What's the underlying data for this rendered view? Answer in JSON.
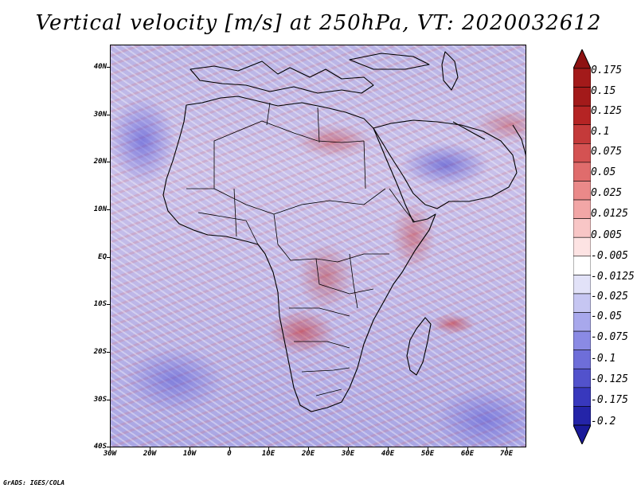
{
  "title": "Vertical velocity [m/s] at 250hPa, VT: 2020032612",
  "credit": "GrADS: IGES/COLA",
  "map": {
    "projection": "latlon",
    "lon_range": [
      -30,
      75
    ],
    "lat_range": [
      -40,
      45
    ],
    "variable": "vertical velocity",
    "units": "m/s",
    "level": "250hPa",
    "valid_time": "2020032612",
    "y_ticks": [
      {
        "lat": 40,
        "label": "40N"
      },
      {
        "lat": 30,
        "label": "30N"
      },
      {
        "lat": 20,
        "label": "20N"
      },
      {
        "lat": 10,
        "label": "10N"
      },
      {
        "lat": 0,
        "label": "EQ"
      },
      {
        "lat": -10,
        "label": "10S"
      },
      {
        "lat": -20,
        "label": "20S"
      },
      {
        "lat": -30,
        "label": "30S"
      },
      {
        "lat": -40,
        "label": "40S"
      }
    ],
    "x_ticks": [
      {
        "lon": -30,
        "label": "30W"
      },
      {
        "lon": -20,
        "label": "20W"
      },
      {
        "lon": -10,
        "label": "10W"
      },
      {
        "lon": 0,
        "label": "0"
      },
      {
        "lon": 10,
        "label": "10E"
      },
      {
        "lon": 20,
        "label": "20E"
      },
      {
        "lon": 30,
        "label": "30E"
      },
      {
        "lon": 40,
        "label": "40E"
      },
      {
        "lon": 50,
        "label": "50E"
      },
      {
        "lon": 60,
        "label": "60E"
      },
      {
        "lon": 70,
        "label": "70E"
      }
    ]
  },
  "colorbar": {
    "orientation": "vertical",
    "placement": "right",
    "levels": [
      {
        "label": "0.175",
        "color": "#a31a1a"
      },
      {
        "label": "0.15",
        "color": "#b52424"
      },
      {
        "label": "0.125",
        "color": "#c43a3a"
      },
      {
        "label": "0.1",
        "color": "#d45252"
      },
      {
        "label": "0.075",
        "color": "#e06c6c"
      },
      {
        "label": "0.05",
        "color": "#ea8989"
      },
      {
        "label": "0.025",
        "color": "#f2a6a6"
      },
      {
        "label": "0.0125",
        "color": "#f8c6c6"
      },
      {
        "label": "0.005",
        "color": "#fde3e3"
      },
      {
        "label": "-0.005",
        "color": "#ffffff"
      },
      {
        "label": "-0.0125",
        "color": "#e2e2f8"
      },
      {
        "label": "-0.025",
        "color": "#c6c6f2"
      },
      {
        "label": "-0.05",
        "color": "#a8a8ec"
      },
      {
        "label": "-0.075",
        "color": "#8a8ae4"
      },
      {
        "label": "-0.1",
        "color": "#6e6ed9"
      },
      {
        "label": "-0.125",
        "color": "#5252cc"
      },
      {
        "label": "-0.175",
        "color": "#3838bd"
      },
      {
        "label": "-0.2",
        "color": "#2424a8"
      }
    ],
    "top_color": "#8e1212",
    "bottom_color": "#1a1a9a"
  }
}
